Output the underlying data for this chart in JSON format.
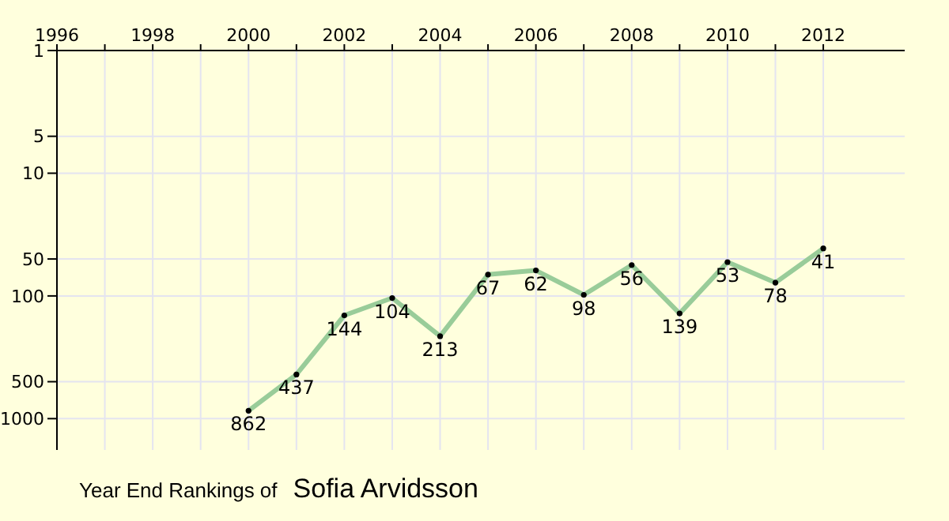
{
  "chart_data": {
    "type": "line",
    "title": "Year End Rankings of",
    "subtitle": "Sofia Arvidsson",
    "x": [
      2000,
      2001,
      2002,
      2003,
      2004,
      2005,
      2006,
      2007,
      2008,
      2009,
      2010,
      2011,
      2012
    ],
    "series": [
      {
        "color": "#99cc99",
        "values": [
          862,
          437,
          144,
          104,
          213,
          67,
          62,
          98,
          56,
          139,
          53,
          78,
          41
        ]
      }
    ],
    "xlim": [
      1996,
      2013.7
    ],
    "xticks": [
      1996,
      {
        "value": 1997,
        "label": null
      },
      1998,
      {
        "value": 1999,
        "label": null
      },
      2000,
      {
        "value": 2001,
        "label": null
      },
      2002,
      {
        "value": 2003,
        "label": null
      },
      2004,
      {
        "value": 2005,
        "label": null
      },
      2006,
      {
        "value": 2007,
        "label": null
      },
      2008,
      {
        "value": 2009,
        "label": null
      },
      2010,
      {
        "value": 2011,
        "label": null
      },
      2012
    ],
    "ylim": [
      1800,
      1
    ],
    "yticks": [
      1,
      5,
      10,
      50,
      100,
      500,
      1000
    ],
    "log": "y",
    "grid": true,
    "data_labels": true,
    "marker": "circle",
    "line_style": "solid"
  }
}
